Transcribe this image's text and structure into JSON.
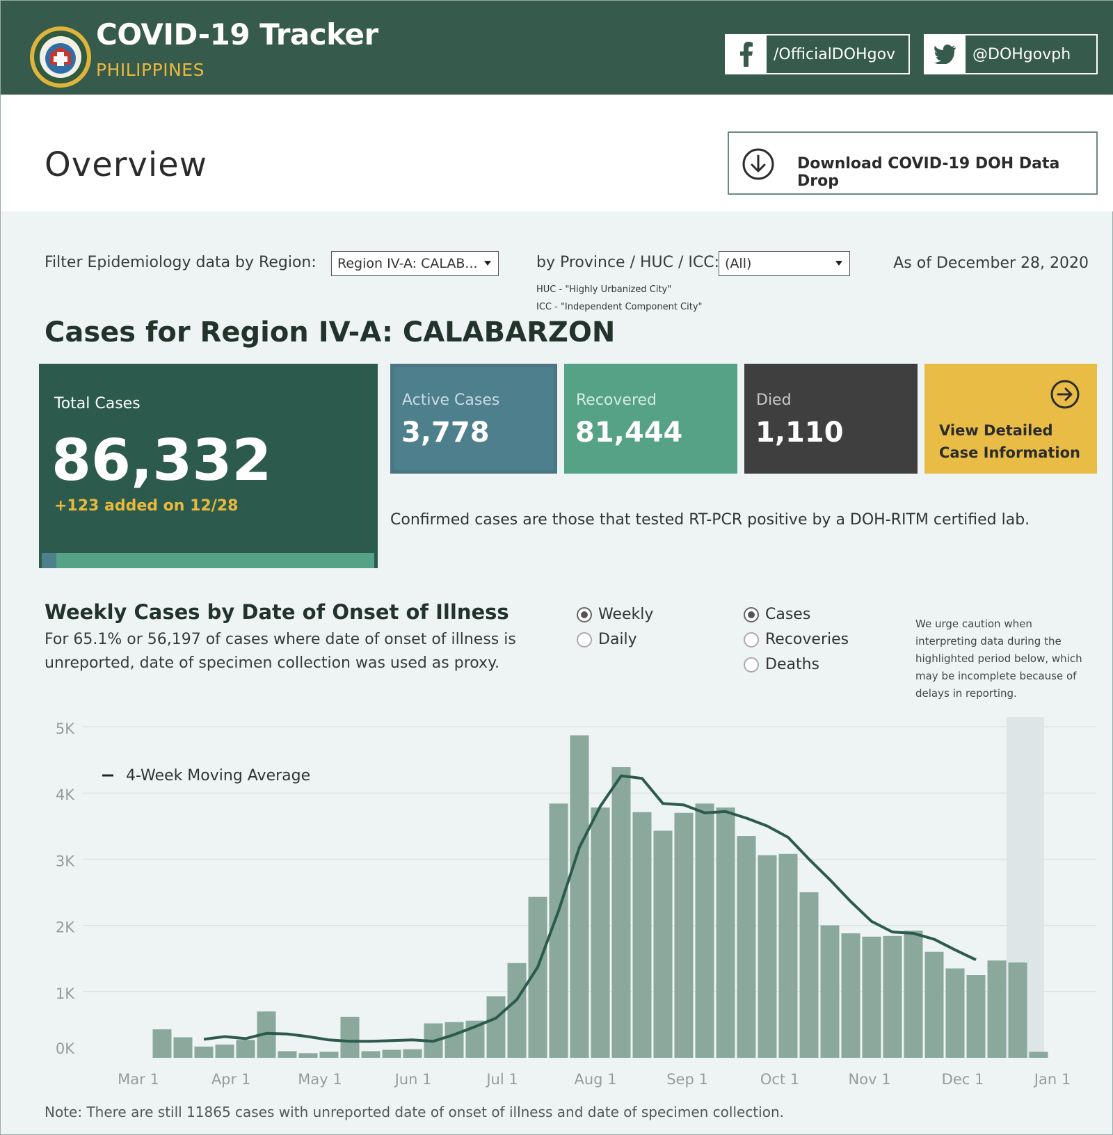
{
  "header": {
    "title": "COVID-19 Tracker",
    "subtitle": "PHILIPPINES",
    "facebook": "/OfficialDOHgov",
    "twitter": "@DOHgovph"
  },
  "page": {
    "title": "Overview",
    "download_label": "Download COVID-19 DOH Data Drop"
  },
  "filters": {
    "region_label": "Filter Epidemiology data by Region:",
    "region_value": "Region IV-A: CALAB...",
    "province_label": "by Province / HUC / ICC:",
    "province_value": "(All)",
    "huc_note": "HUC - \"Highly Urbanized City\"",
    "icc_note": "ICC - \"Independent Component City\"",
    "as_of": "As of December 28, 2020"
  },
  "cases": {
    "title": "Cases for Region IV-A: CALABARZON",
    "total_label": "Total Cases",
    "total_value": "86,332",
    "added": "+123 added on 12/28",
    "active_label": "Active Cases",
    "active_value": "3,778",
    "recovered_label": "Recovered",
    "recovered_value": "81,444",
    "died_label": "Died",
    "died_value": "1,110",
    "details_line1": "View Detailed",
    "details_line2": "Case Information",
    "confirmed_note": "Confirmed cases are those that tested RT-PCR positive by a DOH-RITM certified lab.",
    "active_fraction": 0.0438,
    "colors": {
      "total": "#2c5b4e",
      "active": "#4e7f8c",
      "recovered": "#55a287",
      "died": "#3f3f3f",
      "details": "#e9bd45"
    }
  },
  "weekly": {
    "title": "Weekly Cases by Date of Onset of Illness",
    "subtitle": "For 65.1% or 56,197 of cases where date of onset of illness is unreported, date of specimen collection was used as proxy.",
    "period_options": [
      "Weekly",
      "Daily"
    ],
    "period_selected": "Weekly",
    "metric_options": [
      "Cases",
      "Recoveries",
      "Deaths"
    ],
    "metric_selected": "Cases",
    "caution": "We urge caution when interpreting data during the highlighted period below, which may be incomplete because of delays in reporting.",
    "legend": "4-Week Moving Average",
    "footnote": "Note: There are still 11865 cases with unreported date of onset of illness and date of specimen collection."
  },
  "chart_data": {
    "type": "bar",
    "x_ticks": [
      "Mar 1",
      "Apr 1",
      "May 1",
      "Jun 1",
      "Jul 1",
      "Aug 1",
      "Sep 1",
      "Oct 1",
      "Nov 1",
      "Dec 1",
      "Jan 1"
    ],
    "y_ticks": [
      "0K",
      "1K",
      "2K",
      "3K",
      "4K",
      "5K"
    ],
    "ylim": [
      0,
      5000
    ],
    "highlight_weeks": 2,
    "bar_color": "#8aa89c",
    "line_color": "#2c5b4e",
    "highlight_color": "#dde5e6",
    "weeks": [
      "Mar 8",
      "Mar 15",
      "Mar 22",
      "Mar 29",
      "Apr 5",
      "Apr 12",
      "Apr 19",
      "Apr 26",
      "May 3",
      "May 10",
      "May 17",
      "May 24",
      "May 31",
      "Jun 7",
      "Jun 14",
      "Jun 21",
      "Jun 28",
      "Jul 5",
      "Jul 12",
      "Jul 19",
      "Jul 26",
      "Aug 2",
      "Aug 9",
      "Aug 16",
      "Aug 23",
      "Aug 30",
      "Sep 6",
      "Sep 13",
      "Sep 20",
      "Sep 27",
      "Oct 4",
      "Oct 11",
      "Oct 18",
      "Oct 25",
      "Nov 1",
      "Nov 8",
      "Nov 15",
      "Nov 22",
      "Nov 29",
      "Dec 6",
      "Dec 13",
      "Dec 20",
      "Dec 27"
    ],
    "series": [
      {
        "name": "Cases",
        "values": [
          430,
          310,
          170,
          200,
          270,
          700,
          100,
          70,
          90,
          620,
          100,
          120,
          130,
          520,
          540,
          560,
          930,
          1430,
          2430,
          3840,
          4870,
          3780,
          4390,
          3710,
          3430,
          3700,
          3840,
          3780,
          3350,
          3060,
          3080,
          2500,
          2000,
          1880,
          1830,
          1840,
          1920,
          1600,
          1350,
          1250,
          1470,
          1440,
          90
        ]
      },
      {
        "name": "4-Week Moving Average",
        "values": [
          null,
          null,
          280,
          320,
          290,
          370,
          360,
          320,
          270,
          250,
          250,
          260,
          270,
          250,
          350,
          470,
          600,
          880,
          1370,
          2220,
          3180,
          3800,
          4260,
          4220,
          3840,
          3820,
          3700,
          3720,
          3620,
          3500,
          3330,
          3000,
          2690,
          2360,
          2060,
          1900,
          1880,
          1790,
          1630,
          1480,
          null,
          null,
          null
        ]
      }
    ]
  }
}
